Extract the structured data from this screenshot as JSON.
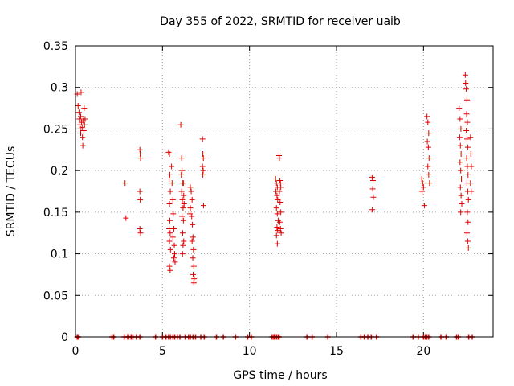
{
  "chart_data": {
    "type": "scatter",
    "title": "Day 355 of 2022, SRMTID for receiver uaib",
    "xlabel": "GPS time / hours",
    "ylabel": "SRMTID / TECUs",
    "xlim": [
      0,
      24
    ],
    "ylim": [
      0,
      0.35
    ],
    "grid": true,
    "colors": {
      "marker": "#dd0000",
      "grid": "#a0a0a0",
      "axis": "#000000"
    },
    "x_ticks": [
      {
        "value": 0,
        "label": "0"
      },
      {
        "value": 5,
        "label": "5"
      },
      {
        "value": 10,
        "label": "10"
      },
      {
        "value": 15,
        "label": "15"
      },
      {
        "value": 20,
        "label": "20"
      }
    ],
    "y_ticks": [
      {
        "value": 0,
        "label": "0"
      },
      {
        "value": 0.05,
        "label": "0.05"
      },
      {
        "value": 0.1,
        "label": "0.1"
      },
      {
        "value": 0.15,
        "label": "0.15"
      },
      {
        "value": 0.2,
        "label": "0.2"
      },
      {
        "value": 0.25,
        "label": "0.25"
      },
      {
        "value": 0.3,
        "label": "0.3"
      },
      {
        "value": 0.35,
        "label": "0.35"
      }
    ],
    "series": [
      {
        "name": "SRMTID",
        "marker": "+",
        "points": [
          [
            0.1,
            0.292
          ],
          [
            0.15,
            0.278
          ],
          [
            0.2,
            0.27
          ],
          [
            0.22,
            0.262
          ],
          [
            0.25,
            0.255
          ],
          [
            0.28,
            0.25
          ],
          [
            0.3,
            0.265
          ],
          [
            0.3,
            0.245
          ],
          [
            0.32,
            0.294
          ],
          [
            0.35,
            0.258
          ],
          [
            0.38,
            0.252
          ],
          [
            0.4,
            0.24
          ],
          [
            0.42,
            0.23
          ],
          [
            0.45,
            0.26
          ],
          [
            0.48,
            0.248
          ],
          [
            0.5,
            0.275
          ],
          [
            0.52,
            0.255
          ],
          [
            0.55,
            0.262
          ],
          [
            2.85,
            0.185
          ],
          [
            2.9,
            0.143
          ],
          [
            3.7,
            0.225
          ],
          [
            3.72,
            0.22
          ],
          [
            3.74,
            0.215
          ],
          [
            3.7,
            0.175
          ],
          [
            3.72,
            0.165
          ],
          [
            3.7,
            0.13
          ],
          [
            3.74,
            0.125
          ],
          [
            5.35,
            0.222
          ],
          [
            5.4,
            0.22
          ],
          [
            5.42,
            0.195
          ],
          [
            5.38,
            0.19
          ],
          [
            5.45,
            0.175
          ],
          [
            5.4,
            0.16
          ],
          [
            5.42,
            0.14
          ],
          [
            5.38,
            0.13
          ],
          [
            5.44,
            0.125
          ],
          [
            5.4,
            0.115
          ],
          [
            5.46,
            0.105
          ],
          [
            5.4,
            0.085
          ],
          [
            5.44,
            0.08
          ],
          [
            5.52,
            0.205
          ],
          [
            5.55,
            0.185
          ],
          [
            5.6,
            0.165
          ],
          [
            5.62,
            0.148
          ],
          [
            5.65,
            0.13
          ],
          [
            5.6,
            0.12
          ],
          [
            5.68,
            0.11
          ],
          [
            5.7,
            0.1
          ],
          [
            5.65,
            0.095
          ],
          [
            5.72,
            0.09
          ],
          [
            6.05,
            0.255
          ],
          [
            6.1,
            0.215
          ],
          [
            6.12,
            0.2
          ],
          [
            6.08,
            0.195
          ],
          [
            6.15,
            0.185
          ],
          [
            6.1,
            0.175
          ],
          [
            6.14,
            0.165
          ],
          [
            6.18,
            0.155
          ],
          [
            6.12,
            0.145
          ],
          [
            6.2,
            0.14
          ],
          [
            6.16,
            0.125
          ],
          [
            6.22,
            0.115
          ],
          [
            6.18,
            0.11
          ],
          [
            6.15,
            0.1
          ],
          [
            6.2,
            0.185
          ],
          [
            6.22,
            0.17
          ],
          [
            6.24,
            0.16
          ],
          [
            6.6,
            0.18
          ],
          [
            6.65,
            0.175
          ],
          [
            6.7,
            0.165
          ],
          [
            6.68,
            0.145
          ],
          [
            6.72,
            0.135
          ],
          [
            6.75,
            0.12
          ],
          [
            6.7,
            0.115
          ],
          [
            6.78,
            0.105
          ],
          [
            6.74,
            0.095
          ],
          [
            6.8,
            0.085
          ],
          [
            6.76,
            0.075
          ],
          [
            6.82,
            0.07
          ],
          [
            6.8,
            0.065
          ],
          [
            6.6,
            0.155
          ],
          [
            6.58,
            0.148
          ],
          [
            7.3,
            0.238
          ],
          [
            7.32,
            0.22
          ],
          [
            7.35,
            0.215
          ],
          [
            7.3,
            0.205
          ],
          [
            7.34,
            0.2
          ],
          [
            7.32,
            0.195
          ],
          [
            7.36,
            0.158
          ],
          [
            11.5,
            0.19
          ],
          [
            11.55,
            0.185
          ],
          [
            11.6,
            0.18
          ],
          [
            11.52,
            0.175
          ],
          [
            11.58,
            0.17
          ],
          [
            11.62,
            0.165
          ],
          [
            11.55,
            0.155
          ],
          [
            11.6,
            0.148
          ],
          [
            11.65,
            0.14
          ],
          [
            11.58,
            0.132
          ],
          [
            11.62,
            0.128
          ],
          [
            11.55,
            0.122
          ],
          [
            11.6,
            0.112
          ],
          [
            11.7,
            0.218
          ],
          [
            11.72,
            0.215
          ],
          [
            11.75,
            0.188
          ],
          [
            11.78,
            0.185
          ],
          [
            11.8,
            0.18
          ],
          [
            11.72,
            0.175
          ],
          [
            11.76,
            0.162
          ],
          [
            11.8,
            0.15
          ],
          [
            11.74,
            0.138
          ],
          [
            11.78,
            0.13
          ],
          [
            11.82,
            0.125
          ],
          [
            17.05,
            0.192
          ],
          [
            17.1,
            0.188
          ],
          [
            17.08,
            0.178
          ],
          [
            17.12,
            0.168
          ],
          [
            17.06,
            0.153
          ],
          [
            19.9,
            0.19
          ],
          [
            19.95,
            0.185
          ],
          [
            20.0,
            0.18
          ],
          [
            19.92,
            0.175
          ],
          [
            20.05,
            0.158
          ],
          [
            20.2,
            0.265
          ],
          [
            20.25,
            0.258
          ],
          [
            20.3,
            0.245
          ],
          [
            20.22,
            0.235
          ],
          [
            20.28,
            0.228
          ],
          [
            20.32,
            0.215
          ],
          [
            20.25,
            0.205
          ],
          [
            20.3,
            0.195
          ],
          [
            20.35,
            0.185
          ],
          [
            22.05,
            0.275
          ],
          [
            22.1,
            0.262
          ],
          [
            22.15,
            0.25
          ],
          [
            22.08,
            0.24
          ],
          [
            22.12,
            0.23
          ],
          [
            22.16,
            0.22
          ],
          [
            22.1,
            0.21
          ],
          [
            22.14,
            0.2
          ],
          [
            22.18,
            0.19
          ],
          [
            22.12,
            0.18
          ],
          [
            22.16,
            0.17
          ],
          [
            22.2,
            0.16
          ],
          [
            22.14,
            0.15
          ],
          [
            22.4,
            0.315
          ],
          [
            22.42,
            0.305
          ],
          [
            22.45,
            0.298
          ],
          [
            22.5,
            0.285
          ],
          [
            22.48,
            0.268
          ],
          [
            22.52,
            0.258
          ],
          [
            22.46,
            0.248
          ],
          [
            22.5,
            0.238
          ],
          [
            22.54,
            0.228
          ],
          [
            22.48,
            0.215
          ],
          [
            22.52,
            0.205
          ],
          [
            22.56,
            0.195
          ],
          [
            22.5,
            0.185
          ],
          [
            22.54,
            0.175
          ],
          [
            22.58,
            0.165
          ],
          [
            22.52,
            0.15
          ],
          [
            22.56,
            0.138
          ],
          [
            22.5,
            0.125
          ],
          [
            22.54,
            0.115
          ],
          [
            22.58,
            0.107
          ],
          [
            22.7,
            0.24
          ],
          [
            22.72,
            0.22
          ],
          [
            22.75,
            0.205
          ],
          [
            22.7,
            0.185
          ],
          [
            22.74,
            0.175
          ]
        ]
      }
    ],
    "zero_markers_x": [
      0.1,
      0.15,
      2.1,
      2.2,
      2.8,
      3.0,
      3.05,
      3.2,
      3.3,
      3.5,
      3.7,
      4.6,
      5.0,
      5.2,
      5.35,
      5.45,
      5.6,
      5.7,
      5.85,
      6.0,
      6.3,
      6.5,
      6.6,
      6.75,
      6.9,
      7.2,
      7.4,
      8.1,
      8.5,
      9.2,
      9.9,
      10.1,
      11.3,
      11.4,
      11.45,
      11.55,
      11.65,
      11.7,
      13.3,
      13.6,
      14.5,
      16.4,
      16.6,
      16.8,
      17.0,
      17.3,
      19.4,
      19.7,
      20.0,
      20.1,
      20.2,
      20.3,
      21.0,
      21.3,
      21.9,
      22.0,
      22.6,
      22.8
    ]
  }
}
